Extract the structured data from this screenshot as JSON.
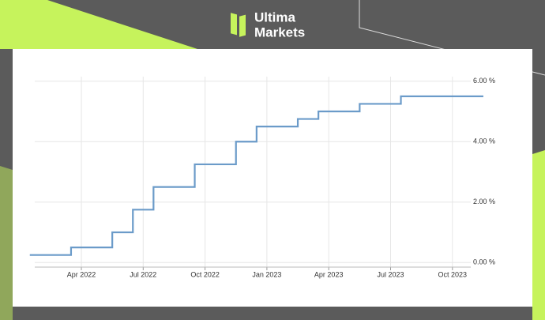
{
  "brand": {
    "line1": "Ultima",
    "line2": "Markets"
  },
  "chart_data": {
    "type": "line",
    "step": true,
    "x": [
      "2022-01",
      "2022-02",
      "2022-03",
      "2022-04",
      "2022-05",
      "2022-06",
      "2022-07",
      "2022-08",
      "2022-09",
      "2022-10",
      "2022-11",
      "2022-12",
      "2023-01",
      "2023-02",
      "2023-03",
      "2023-04",
      "2023-05",
      "2023-06",
      "2023-07",
      "2023-08",
      "2023-09",
      "2023-10",
      "2023-11"
    ],
    "series": [
      {
        "color": "#6b9bc9",
        "values": [
          0.25,
          0.25,
          0.5,
          0.5,
          1.0,
          1.75,
          2.5,
          2.5,
          3.25,
          3.25,
          4.0,
          4.5,
          4.5,
          4.75,
          5.0,
          5.0,
          5.25,
          5.25,
          5.5,
          5.5,
          5.5,
          5.5,
          5.5
        ]
      }
    ],
    "xticks": [
      {
        "value": "2022-04",
        "label": "Apr 2022"
      },
      {
        "value": "2022-07",
        "label": "Jul 2022"
      },
      {
        "value": "2022-10",
        "label": "Oct 2022"
      },
      {
        "value": "2023-01",
        "label": "Jan 2023"
      },
      {
        "value": "2023-04",
        "label": "Apr 2023"
      },
      {
        "value": "2023-07",
        "label": "Jul 2023"
      },
      {
        "value": "2023-10",
        "label": "Oct 2023"
      }
    ],
    "ylim": [
      -0.15,
      6.15
    ],
    "yticks": [
      {
        "value": 0,
        "label": "0.00 %"
      },
      {
        "value": 2,
        "label": "2.00 %"
      },
      {
        "value": 4,
        "label": "4.00 %"
      },
      {
        "value": 6,
        "label": "6.00 %"
      }
    ],
    "grid": true
  }
}
